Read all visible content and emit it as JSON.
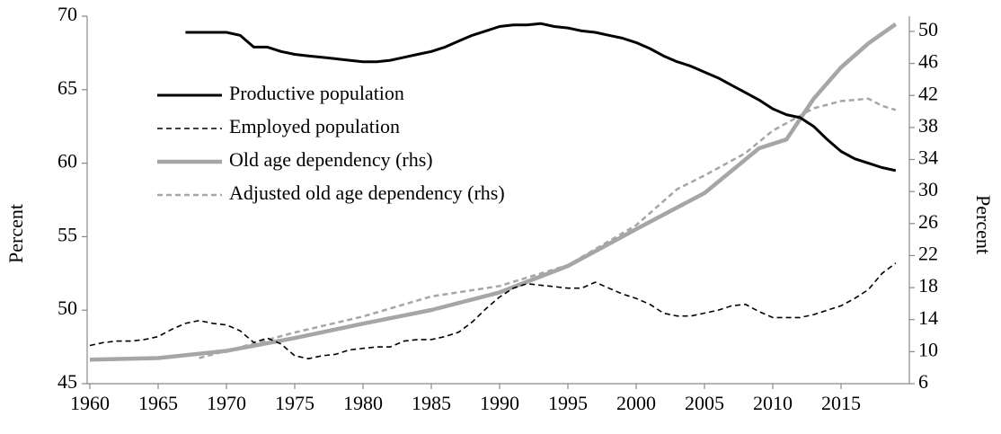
{
  "chart_data": {
    "type": "line",
    "xlim": [
      1960,
      2020
    ],
    "xticks": [
      1960,
      1965,
      1970,
      1975,
      1980,
      1985,
      1990,
      1995,
      2000,
      2005,
      2010,
      2015
    ],
    "ylim": [
      45,
      70
    ],
    "yticks": [
      45,
      50,
      55,
      60,
      65,
      70
    ],
    "y2lim": [
      6,
      51.9
    ],
    "y2ticks": [
      6,
      10,
      14,
      18,
      22,
      26,
      30,
      34,
      38,
      42,
      46,
      50
    ],
    "ylabel": "Percent",
    "y2label": "Percent",
    "legend": "upper left",
    "series": [
      {
        "name": "Productive population",
        "color": "#000000",
        "style": "solid",
        "x": [
          1967,
          1968,
          1969,
          1970,
          1971,
          1972,
          1973,
          1974,
          1975,
          1976,
          1977,
          1978,
          1979,
          1980,
          1981,
          1982,
          1983,
          1984,
          1985,
          1986,
          1987,
          1988,
          1989,
          1990,
          1991,
          1992,
          1993,
          1994,
          1995,
          1996,
          1997,
          1998,
          1999,
          2000,
          2001,
          2002,
          2003,
          2004,
          2005,
          2006,
          2007,
          2008,
          2009,
          2010,
          2011,
          2012,
          2013,
          2014,
          2015,
          2016,
          2017,
          2018,
          2019
        ],
        "values": [
          68.9,
          68.9,
          68.9,
          68.9,
          68.7,
          67.9,
          67.9,
          67.6,
          67.4,
          67.3,
          67.2,
          67.1,
          67.0,
          66.9,
          66.9,
          67.0,
          67.2,
          67.4,
          67.6,
          67.9,
          68.3,
          68.7,
          69.0,
          69.3,
          69.4,
          69.4,
          69.5,
          69.3,
          69.2,
          69.0,
          68.9,
          68.7,
          68.5,
          68.2,
          67.8,
          67.3,
          66.9,
          66.6,
          66.2,
          65.8,
          65.3,
          64.8,
          64.3,
          63.7,
          63.3,
          63.1,
          62.5,
          61.6,
          60.8,
          60.3,
          60.0,
          59.7,
          59.5
        ]
      },
      {
        "name": "Employed population",
        "color": "#000000",
        "style": "dashed",
        "x": [
          1960,
          1961,
          1962,
          1963,
          1964,
          1965,
          1966,
          1967,
          1968,
          1969,
          1970,
          1971,
          1972,
          1973,
          1974,
          1975,
          1976,
          1977,
          1978,
          1979,
          1980,
          1981,
          1982,
          1983,
          1984,
          1985,
          1986,
          1987,
          1988,
          1989,
          1990,
          1991,
          1992,
          1993,
          1994,
          1995,
          1996,
          1997,
          1998,
          1999,
          2000,
          2001,
          2002,
          2003,
          2004,
          2005,
          2006,
          2007,
          2008,
          2009,
          2010,
          2011,
          2012,
          2013,
          2014,
          2015,
          2016,
          2017,
          2018,
          2019
        ],
        "values": [
          47.6,
          47.8,
          47.9,
          47.9,
          48.0,
          48.2,
          48.7,
          49.1,
          49.3,
          49.1,
          49.0,
          48.6,
          47.8,
          48.1,
          47.7,
          46.9,
          46.7,
          46.9,
          47.0,
          47.3,
          47.4,
          47.5,
          47.5,
          47.9,
          48.0,
          48.0,
          48.2,
          48.5,
          49.2,
          50.1,
          50.9,
          51.5,
          51.8,
          51.7,
          51.6,
          51.5,
          51.5,
          51.9,
          51.5,
          51.1,
          50.8,
          50.4,
          49.8,
          49.6,
          49.6,
          49.8,
          50.0,
          50.3,
          50.4,
          49.9,
          49.5,
          49.5,
          49.5,
          49.7,
          50.0,
          50.3,
          50.8,
          51.4,
          52.5,
          53.2
        ]
      },
      {
        "name": "Old age dependency (rhs)",
        "color": "#a6a6a6",
        "style": "solid",
        "axis": "y2",
        "x": [
          1960,
          1965,
          1970,
          1975,
          1980,
          1985,
          1990,
          1995,
          2000,
          2005,
          2009,
          2011,
          2013,
          2015,
          2017,
          2019
        ],
        "values": [
          9.0,
          9.2,
          10.1,
          11.7,
          13.5,
          15.2,
          17.4,
          20.7,
          25.3,
          29.8,
          35.4,
          36.5,
          41.6,
          45.5,
          48.5,
          50.9
        ]
      },
      {
        "name": "Adjusted old age dependency  (rhs)",
        "color": "#a6a6a6",
        "style": "dashed",
        "axis": "y2",
        "x": [
          1968,
          1970,
          1975,
          1980,
          1985,
          1990,
          1995,
          2000,
          2003,
          2005,
          2008,
          2010,
          2013,
          2015,
          2017,
          2018,
          2019
        ],
        "values": [
          9.2,
          10.1,
          12.4,
          14.4,
          16.9,
          18.2,
          20.8,
          25.8,
          30.3,
          32.0,
          34.8,
          37.6,
          40.4,
          41.3,
          41.6,
          40.7,
          40.2
        ]
      }
    ]
  }
}
